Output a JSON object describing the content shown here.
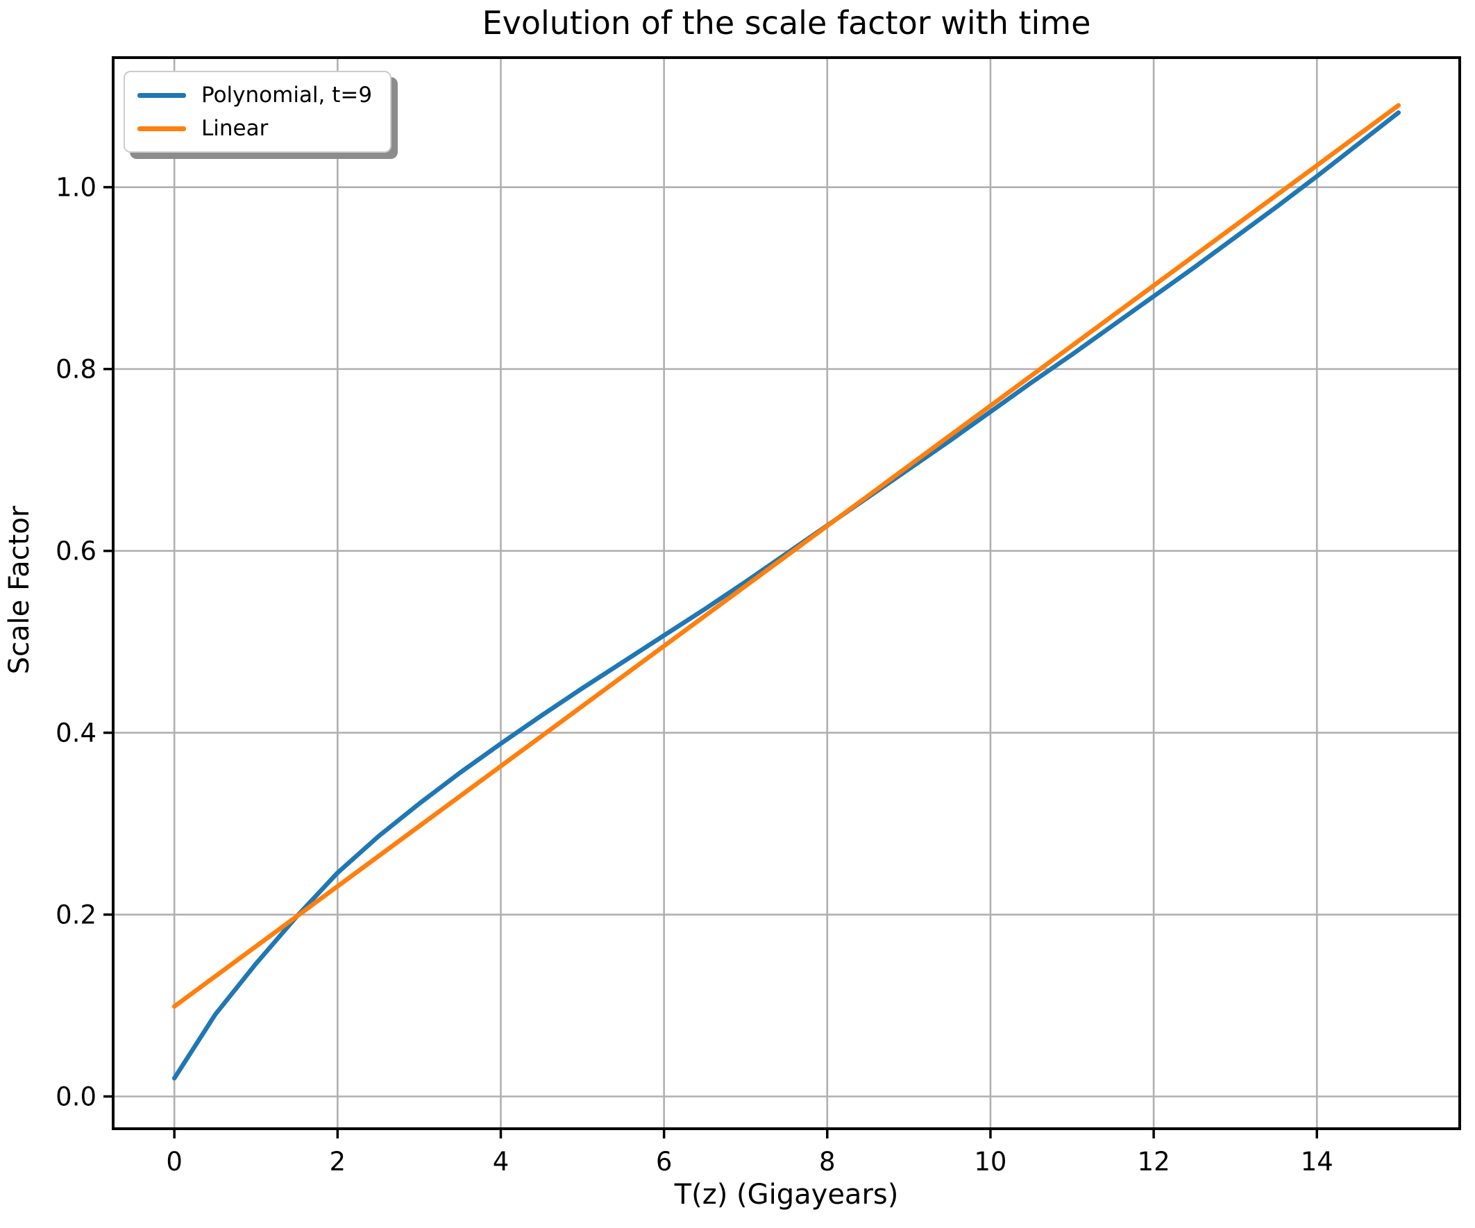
{
  "chart_data": {
    "type": "line",
    "title": "Evolution of the scale factor with time",
    "xlabel": "T(z) (Gigayears)",
    "ylabel": "Scale Factor",
    "grid": true,
    "legend_position": "upper left",
    "xlim": [
      -0.75,
      15.75
    ],
    "ylim": [
      -0.0355,
      1.1425
    ],
    "xticks": [
      0,
      2,
      4,
      6,
      8,
      10,
      12,
      14
    ],
    "xticklabels": [
      "0",
      "2",
      "4",
      "6",
      "8",
      "10",
      "12",
      "14"
    ],
    "yticks": [
      0.0,
      0.2,
      0.4,
      0.6,
      0.8,
      1.0
    ],
    "yticklabels": [
      "0.0",
      "0.2",
      "0.4",
      "0.6",
      "0.8",
      "1.0"
    ],
    "grid_color": "#b0b0b0",
    "axis_color": "#000000",
    "series": [
      {
        "name": "Polynomial, t=9",
        "color": "#1f77b4",
        "x": [
          0,
          0.5,
          1,
          1.5,
          2,
          2.5,
          3,
          3.5,
          4,
          4.5,
          5,
          5.5,
          6,
          6.5,
          7,
          7.5,
          8,
          8.5,
          9,
          9.5,
          10,
          10.5,
          11,
          11.5,
          12,
          12.5,
          13,
          13.5,
          14,
          14.5,
          15
        ],
        "y": [
          0.02,
          0.09,
          0.146,
          0.198,
          0.246,
          0.286,
          0.322,
          0.356,
          0.388,
          0.419,
          0.449,
          0.478,
          0.507,
          0.536,
          0.566,
          0.597,
          0.628,
          0.659,
          0.69,
          0.721,
          0.753,
          0.785,
          0.816,
          0.848,
          0.88,
          0.912,
          0.945,
          0.978,
          1.012,
          1.047,
          1.082
        ]
      },
      {
        "name": "Linear",
        "color": "#ff7f0e",
        "x": [
          0,
          15
        ],
        "y": [
          0.099,
          1.09
        ]
      }
    ]
  }
}
